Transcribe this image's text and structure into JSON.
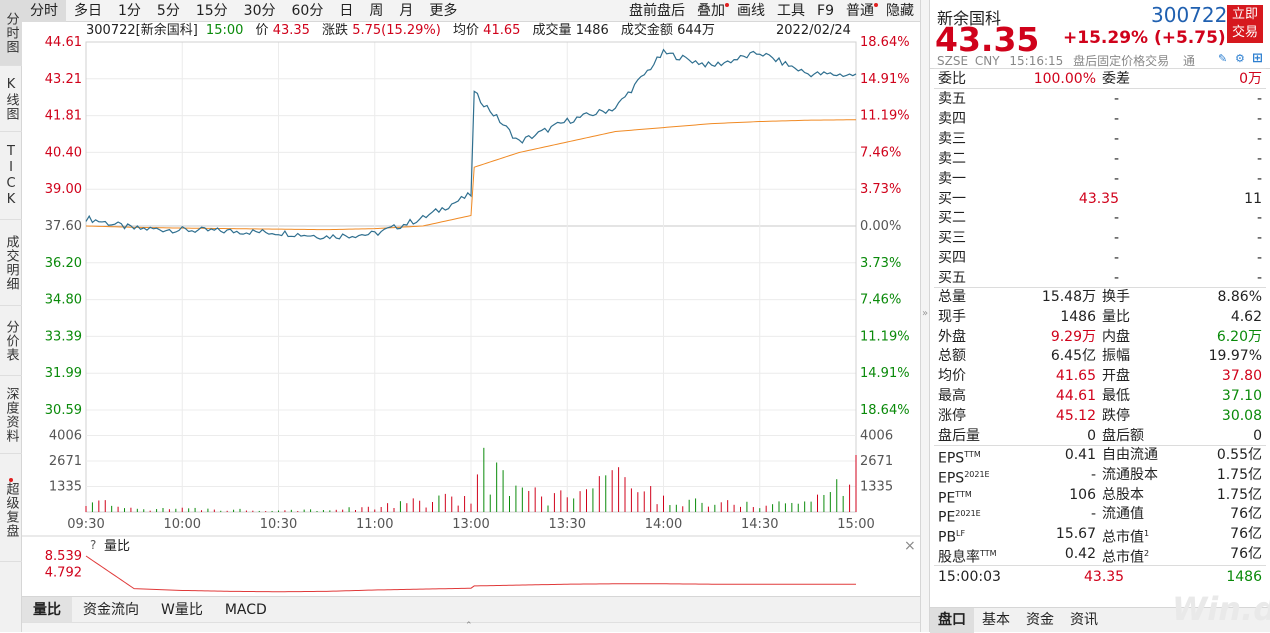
{
  "sidebar": [
    {
      "label": "分时图",
      "h": 66,
      "active": true
    },
    {
      "label": "K线图",
      "h": 66
    },
    {
      "label": "TICK",
      "h": 88
    },
    {
      "label": "成交明细",
      "h": 86
    },
    {
      "label": "分价表",
      "h": 70
    },
    {
      "label": "深度资料",
      "h": 78
    },
    {
      "label": "超级复盘",
      "h": 108,
      "dot": true
    }
  ],
  "toolbar": {
    "left": [
      "分时",
      "多日",
      "1分",
      "5分",
      "15分",
      "30分",
      "60分",
      "日",
      "周",
      "月",
      "更多"
    ],
    "right": [
      "盘前盘后",
      "叠加",
      "画线",
      "工具",
      "F9",
      "普通",
      "隐藏"
    ]
  },
  "info": {
    "code_name": "300722[新余国科]",
    "time": "15:00",
    "price_label": "价",
    "price": "43.35",
    "chg_label": "涨跌",
    "chg": "5.75(15.29%)",
    "avg_label": "均价",
    "avg": "41.65",
    "vol_label": "成交量",
    "vol": "1486",
    "amt_label": "成交金额",
    "amt": "644万",
    "date": "2022/02/24"
  },
  "axes": {
    "left_prices": [
      "44.61",
      "43.21",
      "41.81",
      "40.40",
      "39.00",
      "37.60",
      "36.20",
      "34.80",
      "33.39",
      "31.99",
      "30.59"
    ],
    "right_pcts": [
      "18.64%",
      "14.91%",
      "11.19%",
      "7.46%",
      "3.73%",
      "0.00%",
      "3.73%",
      "7.46%",
      "11.19%",
      "14.91%",
      "18.64%"
    ],
    "vol_ticks": [
      "4006",
      "2671",
      "1335"
    ],
    "time_ticks": [
      "09:30",
      "10:00",
      "10:30",
      "11:00",
      "13:00",
      "13:30",
      "14:00",
      "14:30",
      "15:00"
    ],
    "sub_title": "量比",
    "sub_q": "?",
    "sub_ticks": [
      "8.539",
      "4.792"
    ]
  },
  "chart_data": {
    "type": "line",
    "prev_close": 37.6,
    "ylim": [
      30.59,
      44.61
    ],
    "x": [
      "09:30",
      "09:45",
      "10:00",
      "10:15",
      "10:30",
      "10:45",
      "11:00",
      "11:15",
      "11:30",
      "13:00",
      "13:15",
      "13:30",
      "13:45",
      "14:00",
      "14:15",
      "14:30",
      "14:45",
      "15:00"
    ],
    "series": [
      {
        "values": [
          37.9,
          37.5,
          37.45,
          37.4,
          37.35,
          37.2,
          37.3,
          37.9,
          38.8,
          42.8,
          40.8,
          41.6,
          42.1,
          44.2,
          43.7,
          44.2,
          43.4,
          43.35
        ]
      },
      {
        "values": [
          37.6,
          37.55,
          37.52,
          37.5,
          37.48,
          37.46,
          37.5,
          37.6,
          38.0,
          39.8,
          40.4,
          40.8,
          41.2,
          41.35,
          41.5,
          41.58,
          41.63,
          41.65
        ]
      }
    ],
    "volume": [
      700,
      250,
      200,
      150,
      150,
      150,
      300,
      700,
      900,
      4000,
      1200,
      1000,
      2400,
      900,
      600,
      500,
      700,
      2600
    ],
    "volume_ratio": [
      8.539,
      1.2,
      0.8,
      0.6,
      0.5,
      0.6,
      0.9,
      1.1,
      1.3,
      1.8,
      2.0,
      2.2,
      2.3,
      2.3,
      2.2,
      2.2,
      2.2,
      2.2
    ]
  },
  "quote": {
    "name": "新余国科",
    "code": "300722",
    "trade_btn": "立即交易",
    "price": "43.35",
    "change": "+15.29% (+5.75)",
    "market": "SZSE",
    "currency": "CNY",
    "time": "15:16:15",
    "status": "盘后固定价格交易",
    "tong": "通",
    "ratio_label": "委比",
    "ratio": "100.00%",
    "diff_label": "委差",
    "diff": "0万",
    "book": [
      {
        "l": "卖五",
        "p": "-",
        "v": "-"
      },
      {
        "l": "卖四",
        "p": "-",
        "v": "-"
      },
      {
        "l": "卖三",
        "p": "-",
        "v": "-"
      },
      {
        "l": "卖二",
        "p": "-",
        "v": "-"
      },
      {
        "l": "卖一",
        "p": "-",
        "v": "-"
      },
      {
        "l": "买一",
        "p": "43.35",
        "v": "11"
      },
      {
        "l": "买二",
        "p": "-",
        "v": "-"
      },
      {
        "l": "买三",
        "p": "-",
        "v": "-"
      },
      {
        "l": "买四",
        "p": "-",
        "v": "-"
      },
      {
        "l": "买五",
        "p": "-",
        "v": "-"
      }
    ],
    "stats": [
      {
        "l1": "总量",
        "v1": "15.48万",
        "c1": "",
        "l2": "换手",
        "v2": "8.86%",
        "c2": ""
      },
      {
        "l1": "现手",
        "v1": "1486",
        "c1": "",
        "l2": "量比",
        "v2": "4.62",
        "c2": ""
      },
      {
        "l1": "外盘",
        "v1": "9.29万",
        "c1": "red",
        "l2": "内盘",
        "v2": "6.20万",
        "c2": "green"
      },
      {
        "l1": "总额",
        "v1": "6.45亿",
        "c1": "",
        "l2": "振幅",
        "v2": "19.97%",
        "c2": ""
      },
      {
        "l1": "均价",
        "v1": "41.65",
        "c1": "red",
        "l2": "开盘",
        "v2": "37.80",
        "c2": "red"
      },
      {
        "l1": "最高",
        "v1": "44.61",
        "c1": "red",
        "l2": "最低",
        "v2": "37.10",
        "c2": "green"
      },
      {
        "l1": "涨停",
        "v1": "45.12",
        "c1": "red",
        "l2": "跌停",
        "v2": "30.08",
        "c2": "green"
      },
      {
        "l1": "盘后量",
        "v1": "0",
        "c1": "",
        "l2": "盘后额",
        "v2": "0",
        "c2": ""
      }
    ],
    "fund": [
      {
        "l1": "EPS",
        "s1": "TTM",
        "v1": "0.41",
        "l2": "自由流通",
        "s2": "",
        "v2": "0.55亿"
      },
      {
        "l1": "EPS",
        "s1": "2021E",
        "v1": "-",
        "l2": "流通股本",
        "s2": "",
        "v2": "1.75亿"
      },
      {
        "l1": "PE",
        "s1": "TTM",
        "v1": "106",
        "l2": "总股本",
        "s2": "",
        "v2": "1.75亿"
      },
      {
        "l1": "PE",
        "s1": "2021E",
        "v1": "-",
        "l2": "流通值",
        "s2": "",
        "v2": "76亿"
      },
      {
        "l1": "PB",
        "s1": "LF",
        "v1": "15.67",
        "l2": "总市值",
        "s2": "1",
        "v2": "76亿"
      },
      {
        "l1": "股息率",
        "s1": "TTM",
        "v1": "0.42",
        "l2": "总市值",
        "s2": "2",
        "v2": "76亿"
      }
    ],
    "last_time": "15:00:03",
    "last_price": "43.35",
    "last_vol": "1486",
    "tabs": [
      "盘口",
      "基本",
      "资金",
      "资讯"
    ]
  },
  "bottom_tabs": [
    "量比",
    "资金流向",
    "W量比",
    "MACD"
  ],
  "watermark": "Win.d"
}
